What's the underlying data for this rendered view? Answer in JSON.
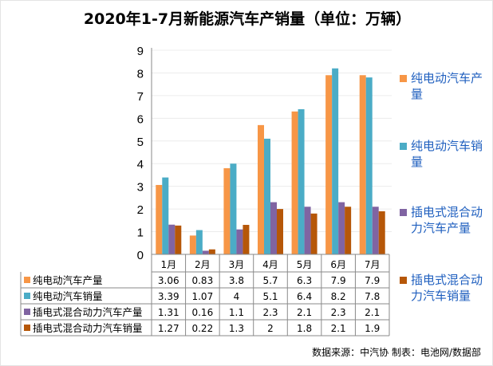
{
  "chart_data": {
    "type": "bar",
    "title": "2020年1-7月新能源汽车产销量（单位：万辆）",
    "categories": [
      "1月",
      "2月",
      "3月",
      "4月",
      "5月",
      "6月",
      "7月"
    ],
    "ylim": [
      0,
      9
    ],
    "yticks": [
      "0",
      "1",
      "2",
      "3",
      "4",
      "5",
      "6",
      "7",
      "8",
      "9"
    ],
    "grid": true,
    "legend_position": "right",
    "data_table": true,
    "series": [
      {
        "name": "纯电动汽车产量",
        "color": "#F79646",
        "values": [
          3.06,
          0.83,
          3.8,
          5.7,
          6.3,
          7.9,
          7.9
        ]
      },
      {
        "name": "纯电动汽车销量",
        "color": "#4BACC6",
        "values": [
          3.39,
          1.07,
          4,
          5.1,
          6.4,
          8.2,
          7.8
        ]
      },
      {
        "name": "插电式混合动力汽车产量",
        "color": "#8064A2",
        "values": [
          1.31,
          0.16,
          1.1,
          2.3,
          2.1,
          2.3,
          2.1
        ]
      },
      {
        "name": "插电式混合动力汽车销量",
        "color": "#B65708",
        "values": [
          1.27,
          0.22,
          1.3,
          2,
          1.8,
          2.1,
          1.9
        ]
      }
    ]
  },
  "footer": "数据来源：中汽协  制表：电池网/数据部"
}
